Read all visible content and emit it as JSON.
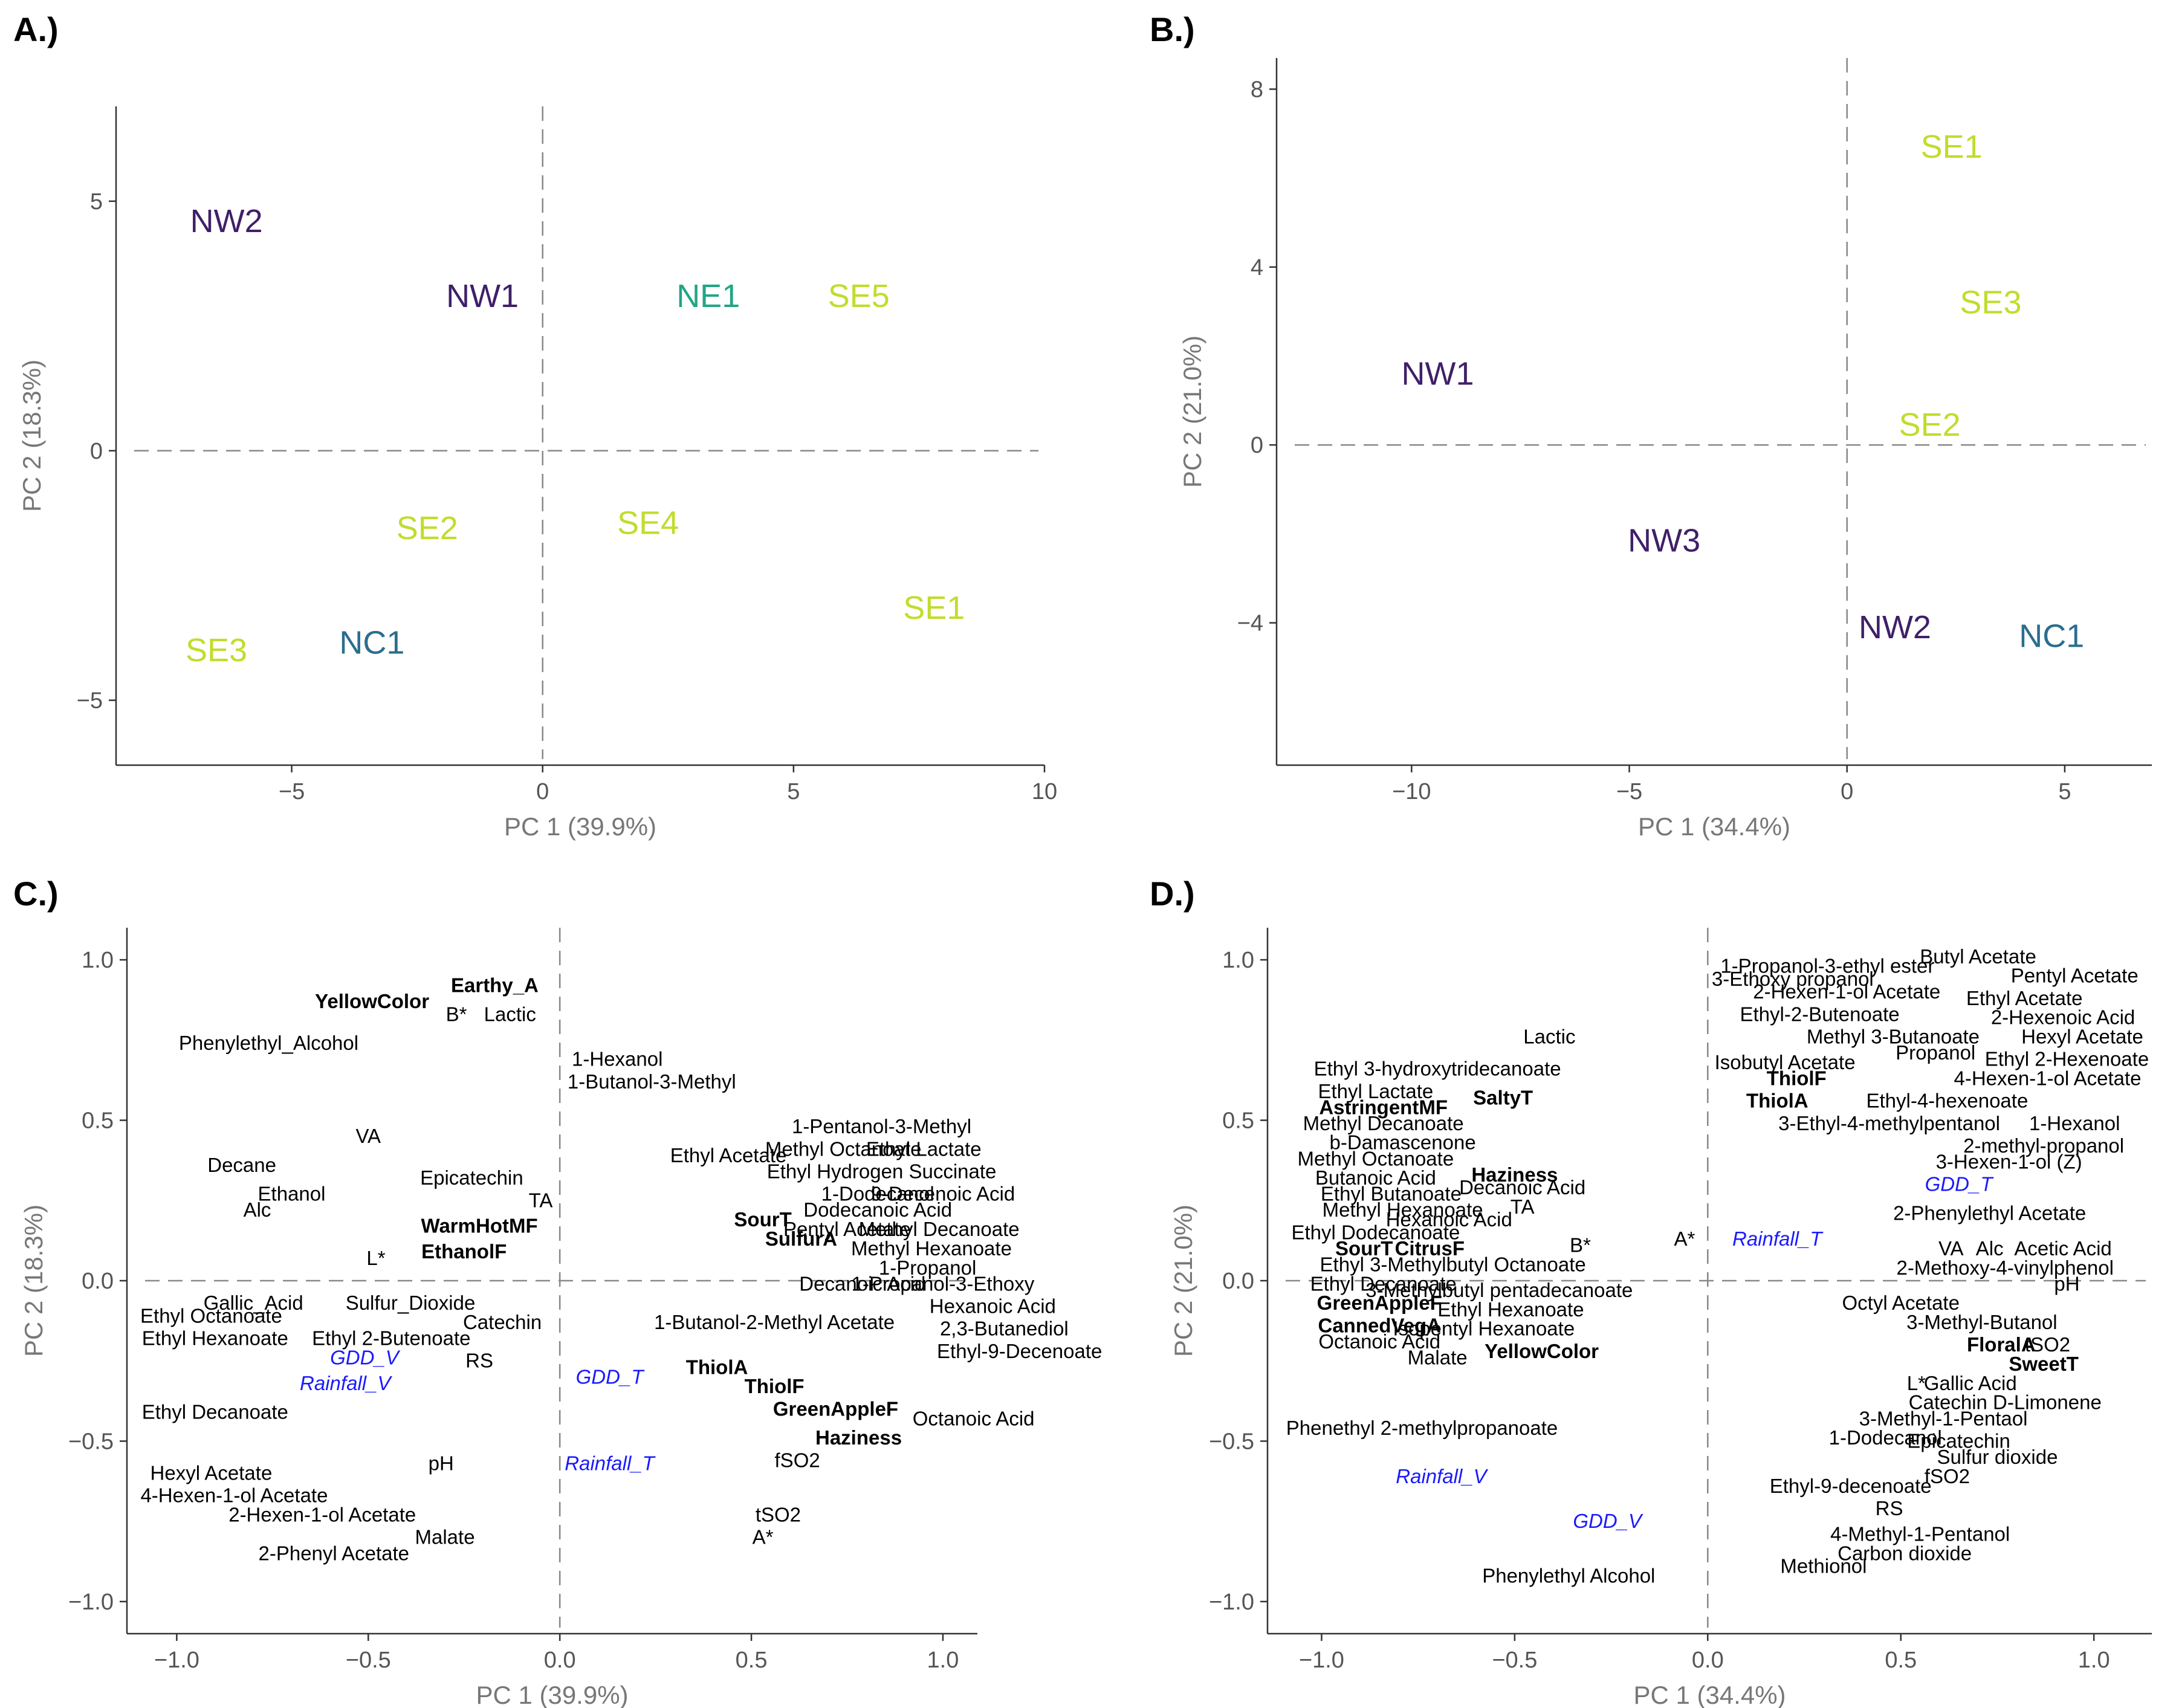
{
  "colors": {
    "NW": "#3f1f69",
    "NE": "#21a685",
    "NC": "#2a6e8e",
    "SE": "#c2dc2c",
    "blue": "#1a1aff",
    "black": "#000000"
  },
  "chart_data": [
    {
      "panel": "A.)",
      "type": "scatter",
      "xlabel": "PC 1 (39.9%)",
      "ylabel": "PC 2 (18.3%)",
      "xlim": [
        -8.5,
        10
      ],
      "ylim": [
        -6.3,
        6.9
      ],
      "xticks": [
        -5,
        0,
        5,
        10
      ],
      "xtick_labels": [
        "−5",
        "0",
        "5",
        "10"
      ],
      "yticks": [
        -5,
        0,
        5
      ],
      "ytick_labels": [
        "−5",
        "0",
        "5"
      ],
      "points": [
        {
          "label": "NW2",
          "x": -6.3,
          "y": 4.6,
          "group": "NW"
        },
        {
          "label": "NW1",
          "x": -1.2,
          "y": 3.1,
          "group": "NW"
        },
        {
          "label": "NE1",
          "x": 3.3,
          "y": 3.1,
          "group": "NE"
        },
        {
          "label": "SE5",
          "x": 6.3,
          "y": 3.1,
          "group": "SE"
        },
        {
          "label": "SE2",
          "x": -2.3,
          "y": -1.55,
          "group": "SE"
        },
        {
          "label": "SE4",
          "x": 2.1,
          "y": -1.45,
          "group": "SE"
        },
        {
          "label": "SE1",
          "x": 7.8,
          "y": -3.15,
          "group": "SE"
        },
        {
          "label": "SE3",
          "x": -6.5,
          "y": -4.0,
          "group": "SE"
        },
        {
          "label": "NC1",
          "x": -3.4,
          "y": -3.85,
          "group": "NC"
        }
      ]
    },
    {
      "panel": "B.)",
      "type": "scatter",
      "xlabel": "PC 1 (34.4%)",
      "ylabel": "PC 2 (21.0%)",
      "xlim": [
        -13.1,
        7
      ],
      "ylim": [
        -7.2,
        8.7
      ],
      "xticks": [
        -10,
        -5,
        0,
        5
      ],
      "xtick_labels": [
        "−10",
        "−5",
        "0",
        "5"
      ],
      "yticks": [
        -4,
        0,
        4,
        8
      ],
      "ytick_labels": [
        "−4",
        "0",
        "4",
        "8"
      ],
      "points": [
        {
          "label": "SE1",
          "x": 2.4,
          "y": 6.7,
          "group": "SE"
        },
        {
          "label": "SE3",
          "x": 3.3,
          "y": 3.2,
          "group": "SE"
        },
        {
          "label": "SE2",
          "x": 1.9,
          "y": 0.45,
          "group": "SE"
        },
        {
          "label": "NW1",
          "x": -9.4,
          "y": 1.6,
          "group": "NW"
        },
        {
          "label": "NW3",
          "x": -4.2,
          "y": -2.15,
          "group": "NW"
        },
        {
          "label": "NW2",
          "x": 1.1,
          "y": -4.1,
          "group": "NW"
        },
        {
          "label": "NC1",
          "x": 4.7,
          "y": -4.3,
          "group": "NC"
        }
      ]
    },
    {
      "panel": "C.)",
      "type": "scatter",
      "xlabel": "PC 1 (39.9%)",
      "ylabel": "PC 2 (18.3%)",
      "xlim": [
        -1.13,
        1.09
      ],
      "ylim": [
        -1.1,
        1.1
      ],
      "xticks": [
        -1.0,
        -0.5,
        0.0,
        0.5,
        1.0
      ],
      "xtick_labels": [
        "−1.0",
        "−0.5",
        "0.0",
        "0.5",
        "1.0"
      ],
      "yticks": [
        -1.0,
        -0.5,
        0.0,
        0.5,
        1.0
      ],
      "ytick_labels": [
        "−1.0",
        "−0.5",
        "0.0",
        "0.5",
        "1.0"
      ],
      "points": [
        {
          "label": "YellowColor",
          "x": -0.49,
          "y": 0.87,
          "style": "bold"
        },
        {
          "label": "Earthy_A",
          "x": -0.17,
          "y": 0.92,
          "style": "bold"
        },
        {
          "label": "B*",
          "x": -0.27,
          "y": 0.83
        },
        {
          "label": "Lactic",
          "x": -0.13,
          "y": 0.83
        },
        {
          "label": "Phenylethyl_Alcohol",
          "x": -0.76,
          "y": 0.74
        },
        {
          "label": "1-Hexanol",
          "x": 0.15,
          "y": 0.69
        },
        {
          "label": "1-Butanol-3-Methyl",
          "x": 0.24,
          "y": 0.62
        },
        {
          "label": "VA",
          "x": -0.5,
          "y": 0.45
        },
        {
          "label": "Decane",
          "x": -0.83,
          "y": 0.36
        },
        {
          "label": "Epicatechin",
          "x": -0.23,
          "y": 0.32
        },
        {
          "label": "Ethanol",
          "x": -0.7,
          "y": 0.27
        },
        {
          "label": "TA",
          "x": -0.05,
          "y": 0.25
        },
        {
          "label": "Alc",
          "x": -0.79,
          "y": 0.22
        },
        {
          "label": "WarmHotMF",
          "x": -0.21,
          "y": 0.17,
          "style": "bold"
        },
        {
          "label": "EthanolF",
          "x": -0.25,
          "y": 0.09,
          "style": "bold"
        },
        {
          "label": "L*",
          "x": -0.48,
          "y": 0.07
        },
        {
          "label": "Gallic_Acid",
          "x": -0.8,
          "y": -0.07
        },
        {
          "label": "Sulfur_Dioxide",
          "x": -0.39,
          "y": -0.07
        },
        {
          "label": "Ethyl Octanoate",
          "x": -0.91,
          "y": -0.11
        },
        {
          "label": "Catechin",
          "x": -0.15,
          "y": -0.13
        },
        {
          "label": "Ethyl Hexanoate",
          "x": -0.9,
          "y": -0.18
        },
        {
          "label": "Ethyl 2-Butenoate",
          "x": -0.44,
          "y": -0.18
        },
        {
          "label": "GDD_V",
          "x": -0.51,
          "y": -0.24,
          "style": "blue"
        },
        {
          "label": "RS",
          "x": -0.21,
          "y": -0.25
        },
        {
          "label": "Rainfall_V",
          "x": -0.56,
          "y": -0.32,
          "style": "blue"
        },
        {
          "label": "GDD_T",
          "x": 0.13,
          "y": -0.3,
          "style": "blue"
        },
        {
          "label": "Ethyl Decanoate",
          "x": -0.9,
          "y": -0.41
        },
        {
          "label": "Hexyl Acetate",
          "x": -0.91,
          "y": -0.6
        },
        {
          "label": "pH",
          "x": -0.31,
          "y": -0.57
        },
        {
          "label": "Rainfall_T",
          "x": 0.13,
          "y": -0.57,
          "style": "blue"
        },
        {
          "label": "4-Hexen-1-ol Acetate",
          "x": -0.85,
          "y": -0.67
        },
        {
          "label": "2-Hexen-1-ol Acetate",
          "x": -0.62,
          "y": -0.73
        },
        {
          "label": "Malate",
          "x": -0.3,
          "y": -0.8
        },
        {
          "label": "2-Phenyl Acetate",
          "x": -0.59,
          "y": -0.85
        },
        {
          "label": "Ethyl Acetate",
          "x": 0.44,
          "y": 0.39
        },
        {
          "label": "1-Pentanol-3-Methyl",
          "x": 0.84,
          "y": 0.48
        },
        {
          "label": "Methyl Octanoate",
          "x": 0.74,
          "y": 0.41
        },
        {
          "label": "Ethyl Lactate",
          "x": 0.95,
          "y": 0.41
        },
        {
          "label": "Ethyl Hydrogen Succinate",
          "x": 0.84,
          "y": 0.34
        },
        {
          "label": "1-Dodecanol",
          "x": 0.83,
          "y": 0.27
        },
        {
          "label": "9-Decenoic Acid",
          "x": 1.0,
          "y": 0.27
        },
        {
          "label": "Dodecanoic Acid",
          "x": 0.83,
          "y": 0.22
        },
        {
          "label": "SourT",
          "x": 0.53,
          "y": 0.19,
          "style": "bold"
        },
        {
          "label": "Pentyl Acetate",
          "x": 0.75,
          "y": 0.16
        },
        {
          "label": "Methyl Decanoate",
          "x": 0.99,
          "y": 0.16
        },
        {
          "label": "SulfurA",
          "x": 0.63,
          "y": 0.13,
          "style": "bold"
        },
        {
          "label": "Methyl Hexanoate",
          "x": 0.97,
          "y": 0.1
        },
        {
          "label": "1-Propanol",
          "x": 0.96,
          "y": 0.04
        },
        {
          "label": "Decanoic Acid",
          "x": 0.79,
          "y": -0.01
        },
        {
          "label": "1-Propanol-3-Ethoxy",
          "x": 1.0,
          "y": -0.01
        },
        {
          "label": "Hexanoic Acid",
          "x": 1.13,
          "y": -0.08
        },
        {
          "label": "1-Butanol-2-Methyl Acetate",
          "x": 0.56,
          "y": -0.13
        },
        {
          "label": "2,3-Butanediol",
          "x": 1.16,
          "y": -0.15
        },
        {
          "label": "Ethyl-9-Decenoate",
          "x": 1.2,
          "y": -0.22
        },
        {
          "label": "ThiolA",
          "x": 0.41,
          "y": -0.27,
          "style": "bold"
        },
        {
          "label": "ThiolF",
          "x": 0.56,
          "y": -0.33,
          "style": "bold"
        },
        {
          "label": "GreenAppleF",
          "x": 0.72,
          "y": -0.4,
          "style": "bold"
        },
        {
          "label": "Octanoic Acid",
          "x": 1.08,
          "y": -0.43
        },
        {
          "label": "Haziness",
          "x": 0.78,
          "y": -0.49,
          "style": "bold"
        },
        {
          "label": "fSO2",
          "x": 0.62,
          "y": -0.56
        },
        {
          "label": "tSO2",
          "x": 0.57,
          "y": -0.73
        },
        {
          "label": "A*",
          "x": 0.53,
          "y": -0.8
        }
      ]
    },
    {
      "panel": "D.)",
      "type": "scatter",
      "xlabel": "PC 1 (34.4%)",
      "ylabel": "PC 2 (21.0%)",
      "xlim": [
        -1.14,
        1.15
      ],
      "ylim": [
        -1.1,
        1.1
      ],
      "xticks": [
        -1.0,
        -0.5,
        0.0,
        0.5,
        1.0
      ],
      "xtick_labels": [
        "−1.0",
        "−0.5",
        "0.0",
        "0.5",
        "1.0"
      ],
      "yticks": [
        -1.0,
        -0.5,
        0.0,
        0.5,
        1.0
      ],
      "ytick_labels": [
        "−1.0",
        "−0.5",
        "0.0",
        "0.5",
        "1.0"
      ],
      "points": [
        {
          "label": "Lactic",
          "x": -0.41,
          "y": 0.76
        },
        {
          "label": "Ethyl 3-hydroxytridecanoate",
          "x": -0.7,
          "y": 0.66
        },
        {
          "label": "Ethyl Lactate",
          "x": -0.86,
          "y": 0.59
        },
        {
          "label": "SaltyT",
          "x": -0.53,
          "y": 0.57,
          "style": "bold"
        },
        {
          "label": "AstringentMF",
          "x": -0.84,
          "y": 0.54,
          "style": "bold"
        },
        {
          "label": "Methyl Decanoate",
          "x": -0.84,
          "y": 0.49
        },
        {
          "label": "b-Damascenone",
          "x": -0.79,
          "y": 0.43
        },
        {
          "label": "Methyl Octanoate",
          "x": -0.86,
          "y": 0.38
        },
        {
          "label": "Haziness",
          "x": -0.5,
          "y": 0.33,
          "style": "bold"
        },
        {
          "label": "Butanoic Acid",
          "x": -0.86,
          "y": 0.32
        },
        {
          "label": "Decanoic Acid",
          "x": -0.48,
          "y": 0.29
        },
        {
          "label": "Ethyl Butanoate",
          "x": -0.82,
          "y": 0.27
        },
        {
          "label": "TA",
          "x": -0.48,
          "y": 0.23
        },
        {
          "label": "Methyl Hexanoate",
          "x": -0.79,
          "y": 0.22
        },
        {
          "label": "Hexanoic Acid",
          "x": -0.67,
          "y": 0.19
        },
        {
          "label": "Ethyl Dodecanoate",
          "x": -0.86,
          "y": 0.15
        },
        {
          "label": "A*",
          "x": -0.06,
          "y": 0.13
        },
        {
          "label": "B*",
          "x": -0.33,
          "y": 0.11
        },
        {
          "label": "SourT",
          "x": -0.89,
          "y": 0.1,
          "style": "bold"
        },
        {
          "label": "CitrusF",
          "x": -0.72,
          "y": 0.1,
          "style": "bold"
        },
        {
          "label": "Ethyl 3-Methylbutyl Octanoate",
          "x": -0.66,
          "y": 0.05
        },
        {
          "label": "Ethyl Decanoate",
          "x": -0.84,
          "y": -0.01
        },
        {
          "label": "3-Methylbutyl pentadecanoate",
          "x": -0.54,
          "y": -0.03
        },
        {
          "label": "GreenAppleF",
          "x": -0.85,
          "y": -0.07,
          "style": "bold"
        },
        {
          "label": "Ethyl Hexanoate",
          "x": -0.51,
          "y": -0.09
        },
        {
          "label": "CannedVegA",
          "x": -0.85,
          "y": -0.14,
          "style": "bold"
        },
        {
          "label": "Isopentyl Hexanoate",
          "x": -0.58,
          "y": -0.15
        },
        {
          "label": "Octanoic Acid",
          "x": -0.85,
          "y": -0.19
        },
        {
          "label": "YellowColor",
          "x": -0.43,
          "y": -0.22,
          "style": "bold"
        },
        {
          "label": "Malate",
          "x": -0.7,
          "y": -0.24
        },
        {
          "label": "Phenethyl 2-methylpropanoate",
          "x": -0.74,
          "y": -0.46
        },
        {
          "label": "Rainfall_V",
          "x": -0.69,
          "y": -0.61,
          "style": "blue"
        },
        {
          "label": "GDD_V",
          "x": -0.26,
          "y": -0.75,
          "style": "blue"
        },
        {
          "label": "Phenylethyl Alcohol",
          "x": -0.36,
          "y": -0.92
        },
        {
          "label": "1-Propanol-3-ethyl ester",
          "x": 0.31,
          "y": 0.98
        },
        {
          "label": "Butyl Acetate",
          "x": 0.7,
          "y": 1.01
        },
        {
          "label": "3-Ethoxy propanol",
          "x": 0.22,
          "y": 0.94
        },
        {
          "label": "Pentyl Acetate",
          "x": 0.95,
          "y": 0.95
        },
        {
          "label": "2-Hexen-1-ol Acetate",
          "x": 0.36,
          "y": 0.9
        },
        {
          "label": "Ethyl Acetate",
          "x": 0.82,
          "y": 0.88
        },
        {
          "label": "Ethyl-2-Butenoate",
          "x": 0.29,
          "y": 0.83
        },
        {
          "label": "2-Hexenoic Acid",
          "x": 0.92,
          "y": 0.82
        },
        {
          "label": "Methyl 3-Butanoate",
          "x": 0.48,
          "y": 0.76
        },
        {
          "label": "Hexyl Acetate",
          "x": 0.97,
          "y": 0.76
        },
        {
          "label": "Propanol",
          "x": 0.59,
          "y": 0.71
        },
        {
          "label": "Isobutyl Acetate",
          "x": 0.2,
          "y": 0.68
        },
        {
          "label": "Ethyl 2-Hexenoate",
          "x": 0.93,
          "y": 0.69
        },
        {
          "label": "ThiolF",
          "x": 0.23,
          "y": 0.63,
          "style": "bold"
        },
        {
          "label": "4-Hexen-1-ol Acetate",
          "x": 0.88,
          "y": 0.63
        },
        {
          "label": "ThiolA",
          "x": 0.18,
          "y": 0.56,
          "style": "bold"
        },
        {
          "label": "Ethyl-4-hexenoate",
          "x": 0.62,
          "y": 0.56
        },
        {
          "label": "1-Hexanol",
          "x": 0.95,
          "y": 0.49
        },
        {
          "label": "3-Ethyl-4-methylpentanol",
          "x": 0.47,
          "y": 0.49
        },
        {
          "label": "2-methyl-propanol",
          "x": 0.87,
          "y": 0.42
        },
        {
          "label": "3-Hexen-1-ol (Z)",
          "x": 0.78,
          "y": 0.37
        },
        {
          "label": "GDD_T",
          "x": 0.65,
          "y": 0.3,
          "style": "blue"
        },
        {
          "label": "2-Phenylethyl Acetate",
          "x": 0.73,
          "y": 0.21
        },
        {
          "label": "Rainfall_T",
          "x": 0.18,
          "y": 0.13,
          "style": "blue"
        },
        {
          "label": "VA",
          "x": 0.63,
          "y": 0.1
        },
        {
          "label": "Alc",
          "x": 0.73,
          "y": 0.1
        },
        {
          "label": "Acetic Acid",
          "x": 0.92,
          "y": 0.1
        },
        {
          "label": "2-Methoxy-4-vinylphenol",
          "x": 0.77,
          "y": 0.04
        },
        {
          "label": "pH",
          "x": 0.93,
          "y": -0.01
        },
        {
          "label": "Octyl Acetate",
          "x": 0.5,
          "y": -0.07
        },
        {
          "label": "3-Methyl-Butanol",
          "x": 0.71,
          "y": -0.13
        },
        {
          "label": "FloralA",
          "x": 0.76,
          "y": -0.2,
          "style": "bold"
        },
        {
          "label": "tSO2",
          "x": 0.88,
          "y": -0.2
        },
        {
          "label": "SweetT",
          "x": 0.87,
          "y": -0.26,
          "style": "bold"
        },
        {
          "label": "L*",
          "x": 0.54,
          "y": -0.32
        },
        {
          "label": "Gallic Acid",
          "x": 0.68,
          "y": -0.32
        },
        {
          "label": "Catechin D-Limonene",
          "x": 0.77,
          "y": -0.38
        },
        {
          "label": "3-Methyl-1-Pentaol",
          "x": 0.61,
          "y": -0.43
        },
        {
          "label": "1-Dodecanol",
          "x": 0.46,
          "y": -0.49
        },
        {
          "label": "Epicatechin",
          "x": 0.65,
          "y": -0.5
        },
        {
          "label": "Sulfur dioxide",
          "x": 0.75,
          "y": -0.55
        },
        {
          "label": "fSO2",
          "x": 0.62,
          "y": -0.61
        },
        {
          "label": "RS",
          "x": 0.47,
          "y": -0.71
        },
        {
          "label": "Ethyl-9-decenoate",
          "x": 0.37,
          "y": -0.64
        },
        {
          "label": "4-Methyl-1-Pentanol",
          "x": 0.55,
          "y": -0.79
        },
        {
          "label": "Carbon dioxide",
          "x": 0.51,
          "y": -0.85
        },
        {
          "label": "Methionol",
          "x": 0.3,
          "y": -0.89
        }
      ]
    }
  ]
}
